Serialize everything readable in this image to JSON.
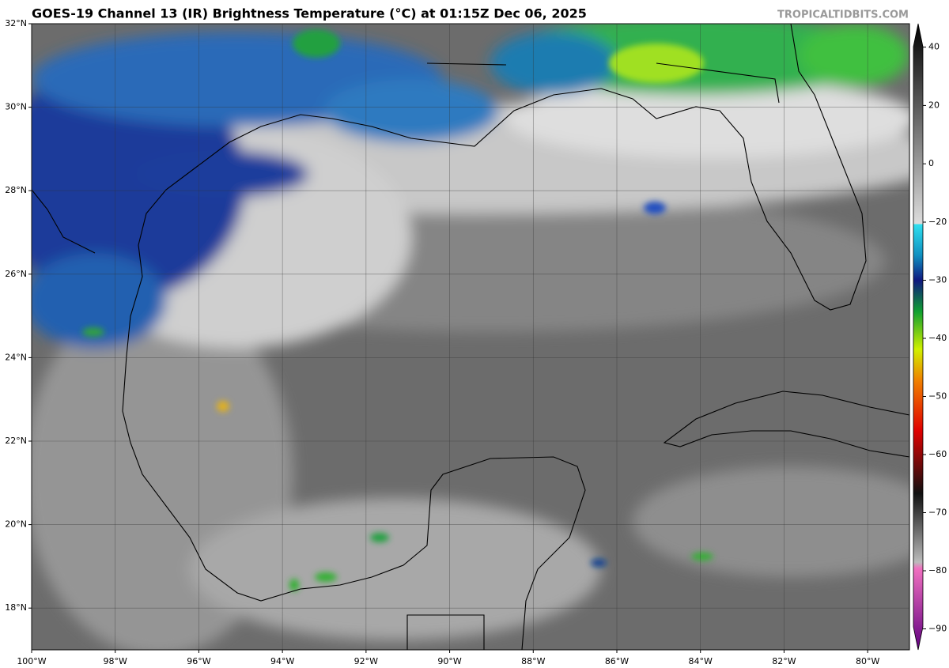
{
  "header": {
    "title": "GOES-19 Channel 13 (IR) Brightness Temperature (°C) at 01:15Z Dec 06, 2025",
    "site": "TROPICALTIDBITS.COM"
  },
  "map": {
    "lonlim": [
      -100,
      -79
    ],
    "latlim": [
      17,
      32
    ],
    "lon_ticks": [
      {
        "value": -100,
        "label": "100°W"
      },
      {
        "value": -98,
        "label": "98°W"
      },
      {
        "value": -96,
        "label": "96°W"
      },
      {
        "value": -94,
        "label": "94°W"
      },
      {
        "value": -92,
        "label": "92°W"
      },
      {
        "value": -90,
        "label": "90°W"
      },
      {
        "value": -88,
        "label": "88°W"
      },
      {
        "value": -86,
        "label": "86°W"
      },
      {
        "value": -84,
        "label": "84°W"
      },
      {
        "value": -82,
        "label": "82°W"
      },
      {
        "value": -80,
        "label": "80°W"
      }
    ],
    "lat_ticks": [
      {
        "value": 32,
        "label": "32°N"
      },
      {
        "value": 30,
        "label": "30°N"
      },
      {
        "value": 28,
        "label": "28°N"
      },
      {
        "value": 26,
        "label": "26°N"
      },
      {
        "value": 24,
        "label": "24°N"
      },
      {
        "value": 22,
        "label": "22°N"
      },
      {
        "value": 20,
        "label": "20°N"
      },
      {
        "value": 18,
        "label": "18°N"
      }
    ]
  },
  "colorbar": {
    "ticks": [
      40,
      20,
      0,
      {
        "value": -20,
        "label": "−20"
      },
      {
        "value": -30,
        "label": "−30"
      },
      {
        "value": -40,
        "label": "−40"
      },
      {
        "value": -50,
        "label": "−50"
      },
      {
        "value": -60,
        "label": "−60"
      },
      {
        "value": -70,
        "label": "−70"
      },
      {
        "value": -80,
        "label": "−80"
      },
      {
        "value": -90,
        "label": "−90"
      }
    ]
  }
}
